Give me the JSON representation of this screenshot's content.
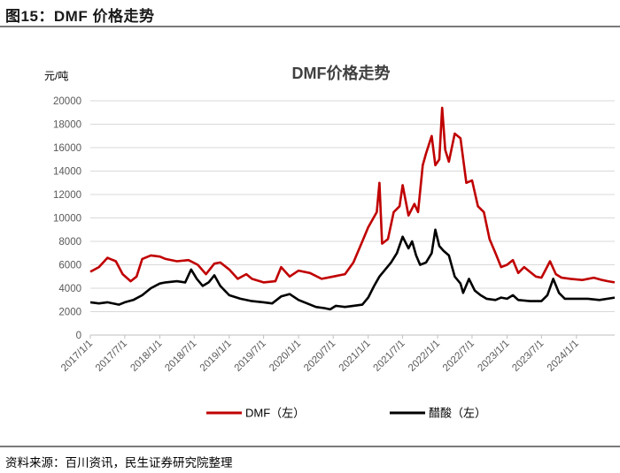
{
  "figure": {
    "label": "图15：DMF 价格走势",
    "source": "资料来源：百川资讯，民生证券研究院整理"
  },
  "chart_data": {
    "type": "line",
    "title": "DMF价格走势",
    "ylabel": "元/吨",
    "xlabel": "",
    "ylim": [
      0,
      20000
    ],
    "yticks": [
      0,
      2000,
      4000,
      6000,
      8000,
      10000,
      12000,
      14000,
      16000,
      18000,
      20000
    ],
    "xlim": [
      "2017/1/1",
      "2024/7/20"
    ],
    "xticks": [
      "2017/1/1",
      "2017/7/1",
      "2018/1/1",
      "2018/7/1",
      "2019/1/1",
      "2019/7/1",
      "2020/1/1",
      "2020/7/1",
      "2021/1/1",
      "2021/7/1",
      "2022/1/1",
      "2022/7/1",
      "2023/1/1",
      "2023/7/1",
      "2024/1/1"
    ],
    "grid": "horizontal",
    "legend_position": "bottom",
    "colors": {
      "DMF": "#C00000",
      "acetic": "#000000",
      "grid": "#d9d9d9",
      "axis": "#bfbfbf"
    },
    "series": [
      {
        "name": "DMF（左）",
        "color": "#C00000",
        "points": [
          [
            "2017/1/1",
            5400
          ],
          [
            "2017/2/15",
            5800
          ],
          [
            "2017/4/1",
            6600
          ],
          [
            "2017/5/15",
            6300
          ],
          [
            "2017/6/20",
            5200
          ],
          [
            "2017/8/1",
            4600
          ],
          [
            "2017/9/1",
            5000
          ],
          [
            "2017/10/1",
            6500
          ],
          [
            "2017/11/15",
            6800
          ],
          [
            "2018/1/1",
            6700
          ],
          [
            "2018/2/1",
            6500
          ],
          [
            "2018/4/1",
            6300
          ],
          [
            "2018/6/1",
            6400
          ],
          [
            "2018/7/20",
            6000
          ],
          [
            "2018/9/1",
            5200
          ],
          [
            "2018/10/15",
            6100
          ],
          [
            "2018/11/15",
            6200
          ],
          [
            "2019/1/1",
            5600
          ],
          [
            "2019/2/15",
            4800
          ],
          [
            "2019/4/1",
            5200
          ],
          [
            "2019/5/1",
            4800
          ],
          [
            "2019/7/1",
            4500
          ],
          [
            "2019/9/1",
            4600
          ],
          [
            "2019/10/1",
            5800
          ],
          [
            "2019/11/15",
            5000
          ],
          [
            "2020/1/1",
            5500
          ],
          [
            "2020/3/1",
            5300
          ],
          [
            "2020/5/1",
            4800
          ],
          [
            "2020/7/1",
            5000
          ],
          [
            "2020/9/1",
            5200
          ],
          [
            "2020/10/15",
            6200
          ],
          [
            "2020/12/1",
            8000
          ],
          [
            "2021/1/1",
            9200
          ],
          [
            "2021/2/15",
            10500
          ],
          [
            "2021/3/1",
            13000
          ],
          [
            "2021/3/15",
            7800
          ],
          [
            "2021/4/15",
            8200
          ],
          [
            "2021/5/15",
            10500
          ],
          [
            "2021/6/15",
            11000
          ],
          [
            "2021/7/1",
            12800
          ],
          [
            "2021/8/1",
            10200
          ],
          [
            "2021/9/1",
            11200
          ],
          [
            "2021/9/20",
            10500
          ],
          [
            "2021/10/15",
            14500
          ],
          [
            "2021/11/1",
            15500
          ],
          [
            "2021/12/1",
            17000
          ],
          [
            "2021/12/20",
            14500
          ],
          [
            "2022/1/10",
            15000
          ],
          [
            "2022/1/25",
            19400
          ],
          [
            "2022/2/10",
            15800
          ],
          [
            "2022/3/1",
            14800
          ],
          [
            "2022/4/1",
            17200
          ],
          [
            "2022/5/1",
            16800
          ],
          [
            "2022/6/1",
            13000
          ],
          [
            "2022/7/1",
            13200
          ],
          [
            "2022/8/1",
            11000
          ],
          [
            "2022/9/1",
            10500
          ],
          [
            "2022/10/1",
            8200
          ],
          [
            "2022/11/1",
            7000
          ],
          [
            "2022/12/1",
            5800
          ],
          [
            "2023/1/1",
            6000
          ],
          [
            "2023/2/1",
            6400
          ],
          [
            "2023/3/1",
            5300
          ],
          [
            "2023/4/1",
            5800
          ],
          [
            "2023/5/1",
            5400
          ],
          [
            "2023/6/1",
            5000
          ],
          [
            "2023/7/1",
            4900
          ],
          [
            "2023/8/15",
            6300
          ],
          [
            "2023/9/15",
            5200
          ],
          [
            "2023/10/15",
            4900
          ],
          [
            "2023/12/1",
            4800
          ],
          [
            "2024/2/1",
            4700
          ],
          [
            "2024/4/1",
            4900
          ],
          [
            "2024/5/15",
            4700
          ],
          [
            "2024/6/15",
            4600
          ],
          [
            "2024/7/20",
            4500
          ]
        ]
      },
      {
        "name": "醋酸（左）",
        "color": "#000000",
        "points": [
          [
            "2017/1/1",
            2800
          ],
          [
            "2017/2/15",
            2700
          ],
          [
            "2017/4/1",
            2800
          ],
          [
            "2017/6/1",
            2600
          ],
          [
            "2017/7/1",
            2800
          ],
          [
            "2017/8/15",
            3000
          ],
          [
            "2017/10/1",
            3400
          ],
          [
            "2017/11/15",
            4000
          ],
          [
            "2018/1/1",
            4400
          ],
          [
            "2018/2/1",
            4500
          ],
          [
            "2018/4/1",
            4600
          ],
          [
            "2018/5/15",
            4500
          ],
          [
            "2018/6/15",
            5600
          ],
          [
            "2018/7/15",
            4800
          ],
          [
            "2018/8/15",
            4200
          ],
          [
            "2018/9/15",
            4500
          ],
          [
            "2018/10/15",
            5100
          ],
          [
            "2018/11/15",
            4200
          ],
          [
            "2019/1/1",
            3400
          ],
          [
            "2019/3/1",
            3100
          ],
          [
            "2019/5/1",
            2900
          ],
          [
            "2019/7/1",
            2800
          ],
          [
            "2019/8/15",
            2700
          ],
          [
            "2019/10/1",
            3300
          ],
          [
            "2019/11/15",
            3500
          ],
          [
            "2020/1/1",
            3000
          ],
          [
            "2020/2/15",
            2700
          ],
          [
            "2020/4/1",
            2400
          ],
          [
            "2020/5/15",
            2300
          ],
          [
            "2020/6/15",
            2200
          ],
          [
            "2020/7/15",
            2500
          ],
          [
            "2020/9/1",
            2400
          ],
          [
            "2020/10/15",
            2500
          ],
          [
            "2020/12/1",
            2600
          ],
          [
            "2021/1/1",
            3200
          ],
          [
            "2021/2/1",
            4200
          ],
          [
            "2021/3/1",
            5000
          ],
          [
            "2021/4/1",
            5600
          ],
          [
            "2021/5/1",
            6200
          ],
          [
            "2021/6/1",
            7000
          ],
          [
            "2021/7/1",
            8400
          ],
          [
            "2021/8/1",
            7400
          ],
          [
            "2021/8/20",
            8000
          ],
          [
            "2021/9/10",
            6800
          ],
          [
            "2021/10/1",
            6000
          ],
          [
            "2021/11/1",
            6200
          ],
          [
            "2021/12/1",
            7000
          ],
          [
            "2021/12/20",
            9000
          ],
          [
            "2022/1/10",
            7600
          ],
          [
            "2022/2/1",
            7200
          ],
          [
            "2022/3/1",
            6800
          ],
          [
            "2022/4/1",
            5000
          ],
          [
            "2022/5/1",
            4400
          ],
          [
            "2022/5/15",
            3600
          ],
          [
            "2022/6/15",
            4800
          ],
          [
            "2022/7/15",
            3800
          ],
          [
            "2022/8/15",
            3400
          ],
          [
            "2022/9/15",
            3100
          ],
          [
            "2022/11/1",
            3000
          ],
          [
            "2022/12/1",
            3200
          ],
          [
            "2023/1/1",
            3100
          ],
          [
            "2023/2/1",
            3400
          ],
          [
            "2023/3/1",
            3000
          ],
          [
            "2023/5/1",
            2900
          ],
          [
            "2023/7/1",
            2900
          ],
          [
            "2023/8/1",
            3400
          ],
          [
            "2023/9/1",
            4800
          ],
          [
            "2023/10/1",
            3600
          ],
          [
            "2023/11/1",
            3100
          ],
          [
            "2024/1/1",
            3100
          ],
          [
            "2024/3/1",
            3100
          ],
          [
            "2024/5/1",
            3000
          ],
          [
            "2024/7/20",
            3200
          ]
        ]
      }
    ]
  }
}
